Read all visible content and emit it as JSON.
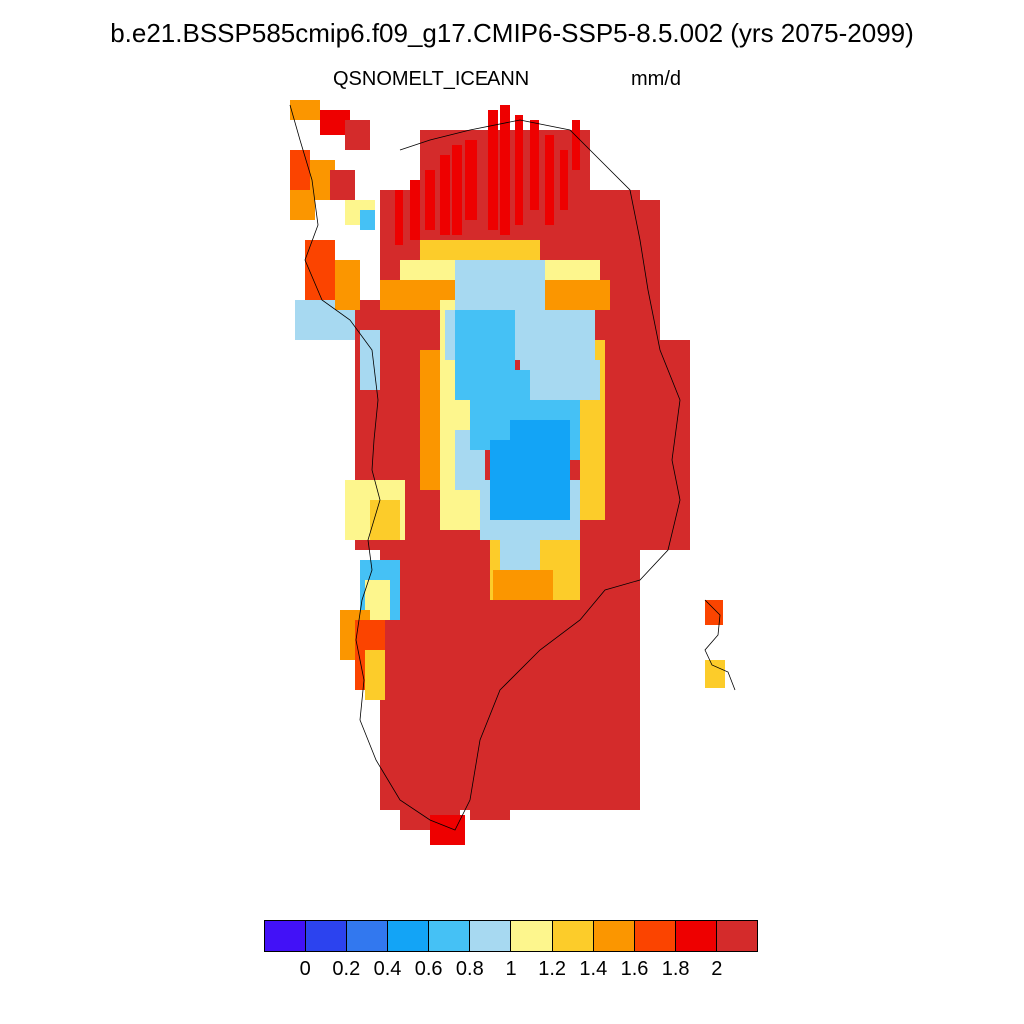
{
  "title": "b.e21.BSSP585cmip6.f09_g17.CMIP6-SSP5-8.5.002 (yrs 2075-2099)",
  "subtitle_left": "QSNOMELT_ICE",
  "subtitle_center": "ANN",
  "subtitle_right": "mm/d",
  "colorbar": {
    "colors": [
      "#4211f7",
      "#2c43ef",
      "#3278ef",
      "#13a4f6",
      "#45c1f5",
      "#a7d9f1",
      "#fdf68d",
      "#fccc2a",
      "#fb9600",
      "#fb4400",
      "#ee0000",
      "#d42b2b"
    ],
    "labels": [
      "0",
      "0.2",
      "0.4",
      "0.6",
      "0.8",
      "1",
      "1.2",
      "1.4",
      "1.6",
      "1.8",
      "2"
    ]
  },
  "chart_data": {
    "type": "heatmap",
    "title": "b.e21.BSSP585cmip6.f09_g17.CMIP6-SSP5-8.5.002 (yrs 2075-2099)",
    "variable": "QSNOMELT_ICE",
    "season": "ANN",
    "units": "mm/d",
    "levels": [
      0,
      0.2,
      0.4,
      0.6,
      0.8,
      1,
      1.2,
      1.4,
      1.6,
      1.8,
      2
    ],
    "legend_placement": "bottom",
    "pattern": "Highest melt (>2 mm/d) along the margins of the ice sheet; lowest values (about 0.6-0.8 mm/d) over the central-northern interior."
  }
}
